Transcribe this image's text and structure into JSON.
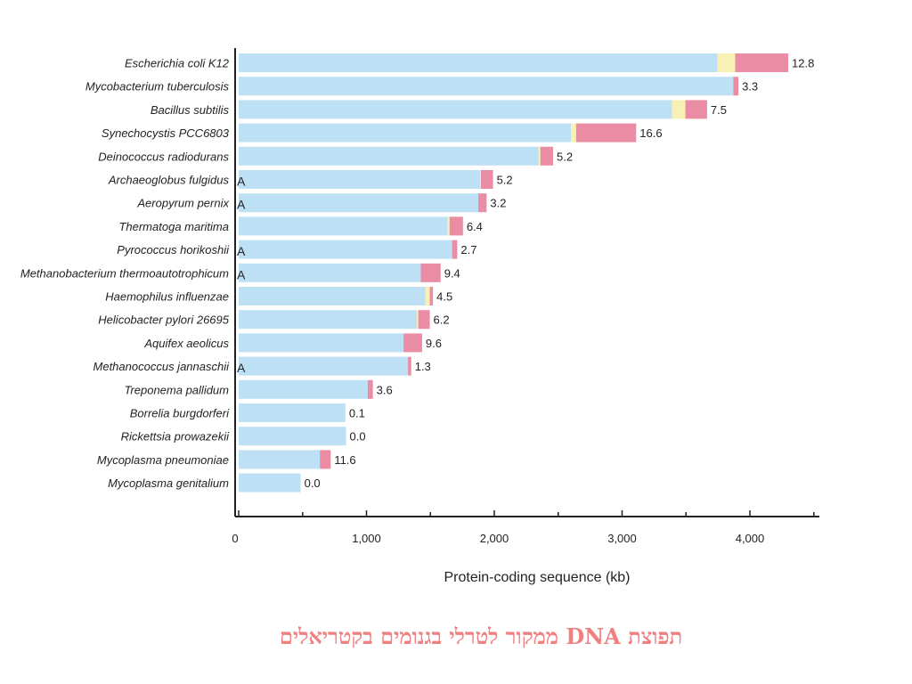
{
  "colors": {
    "blue": "#bde0f5",
    "yellow": "#f7f2b3",
    "pink": "#ea8ca3",
    "axis": "#222222",
    "caption": "#f08080"
  },
  "caption": "תפוצת DNA ממקור לטרלי בגנומים בקטריאלים",
  "chart_data": {
    "type": "bar",
    "orientation": "horizontal",
    "stacked": true,
    "xlabel": "Protein-coding sequence (kb)",
    "xlim": [
      0,
      4500
    ],
    "xticks": [
      0,
      1000,
      2000,
      3000,
      4000
    ],
    "xtick_labels": [
      "0",
      "1,000",
      "2,000",
      "3,000",
      "4,000"
    ],
    "grid": false,
    "archaea_marker": "A",
    "categories": [
      {
        "name": "Escherichia coli K12",
        "archaea": false,
        "label": "12.8",
        "segments": [
          3745,
          140,
          415
        ]
      },
      {
        "name": "Mycobacterium tuberculosis",
        "archaea": false,
        "label": "3.3",
        "segments": [
          3870,
          0,
          40
        ]
      },
      {
        "name": "Bacillus subtilis",
        "archaea": false,
        "label": "7.5",
        "segments": [
          3390,
          105,
          170
        ]
      },
      {
        "name": "Synechocystis PCC6803",
        "archaea": false,
        "label": "16.6",
        "segments": [
          2600,
          40,
          470
        ]
      },
      {
        "name": "Deinococcus radiodurans",
        "archaea": false,
        "label": "5.2",
        "segments": [
          2345,
          15,
          100
        ]
      },
      {
        "name": "Archaeoglobus fulgidus",
        "archaea": true,
        "label": "5.2",
        "segments": [
          1890,
          5,
          95
        ]
      },
      {
        "name": "Aeropyrum pernix",
        "archaea": true,
        "label": "3.2",
        "segments": [
          1875,
          0,
          65
        ]
      },
      {
        "name": "Thermatoga maritima",
        "archaea": false,
        "label": "6.4",
        "segments": [
          1635,
          15,
          105
        ]
      },
      {
        "name": "Pyrococcus horikoshii",
        "archaea": true,
        "label": "2.7",
        "segments": [
          1670,
          0,
          40
        ]
      },
      {
        "name": "Methanobacterium thermoautotrophicum",
        "archaea": true,
        "label": "9.4",
        "segments": [
          1425,
          0,
          155
        ]
      },
      {
        "name": "Haemophilus influenzae",
        "archaea": false,
        "label": "4.5",
        "segments": [
          1460,
          35,
          25
        ]
      },
      {
        "name": "Helicobacter pylori 26695",
        "archaea": false,
        "label": "6.2",
        "segments": [
          1395,
          10,
          90
        ]
      },
      {
        "name": "Aquifex aeolicus",
        "archaea": false,
        "label": "9.6",
        "segments": [
          1290,
          0,
          145
        ]
      },
      {
        "name": "Methanococcus jannaschii",
        "archaea": true,
        "label": "1.3",
        "segments": [
          1325,
          0,
          25
        ]
      },
      {
        "name": "Treponema pallidum",
        "archaea": false,
        "label": "3.6",
        "segments": [
          1010,
          0,
          40
        ]
      },
      {
        "name": "Borrelia burgdorferi",
        "archaea": false,
        "label": "0.1",
        "segments": [
          835,
          0,
          0
        ]
      },
      {
        "name": "Rickettsia prowazekii",
        "archaea": false,
        "label": "0.0",
        "segments": [
          840,
          0,
          0
        ]
      },
      {
        "name": "Mycoplasma pneumoniae",
        "archaea": false,
        "label": "11.6",
        "segments": [
          635,
          0,
          85
        ]
      },
      {
        "name": "Mycoplasma genitalium",
        "archaea": false,
        "label": "0.0",
        "segments": [
          485,
          0,
          0
        ]
      }
    ]
  }
}
